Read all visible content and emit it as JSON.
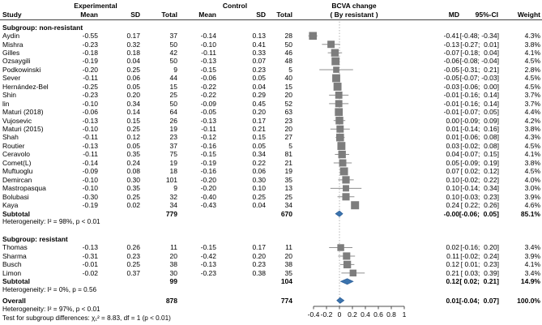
{
  "header": {
    "study": "Study",
    "experimental": "Experimental",
    "control": "Control",
    "bcva_line1": "BCVA change",
    "bcva_line2": "( By resistant )",
    "mean": "Mean",
    "sd": "SD",
    "total": "Total",
    "md": "MD",
    "ci": "95%-CI",
    "weight": "Weight"
  },
  "axis": {
    "ticks": [
      "-0.4",
      "-0.2",
      "0",
      "0.2",
      "0.4",
      "0.6",
      "0.8",
      "1"
    ],
    "tick_values": [
      -0.4,
      -0.2,
      0,
      0.2,
      0.4,
      0.6,
      0.8,
      1
    ],
    "min": -0.4,
    "max": 1
  },
  "colors": {
    "square": "#7d7d7d",
    "ci_line": "#8f8f8f",
    "diamond": "#3b73ad",
    "diamond_stroke": "#2f619a",
    "zero_line": "#b3b3b3",
    "axis": "#4d4d4d"
  },
  "subgroups": [
    {
      "label": "Subgroup: non-resistant",
      "studies": [
        {
          "study": "Aydin",
          "mean": "-0.55",
          "sd": "0.17",
          "total": "37",
          "c_mean": "-0.14",
          "c_sd": "0.13",
          "c_total": "28",
          "md": "-0.41",
          "ci": "[-0.48; -0.34]",
          "weight": "4.3%"
        },
        {
          "study": "Mishra",
          "mean": "-0.23",
          "sd": "0.32",
          "total": "50",
          "c_mean": "-0.10",
          "c_sd": "0.41",
          "c_total": "50",
          "md": "-0.13",
          "ci": "[-0.27;  0.01]",
          "weight": "3.8%"
        },
        {
          "study": "Gilles",
          "mean": "-0.18",
          "sd": "0.18",
          "total": "42",
          "c_mean": "-0.11",
          "c_sd": "0.33",
          "c_total": "46",
          "md": "-0.07",
          "ci": "[-0.18;  0.04]",
          "weight": "4.1%"
        },
        {
          "study": "Ozsaygili",
          "mean": "-0.19",
          "sd": "0.04",
          "total": "50",
          "c_mean": "-0.13",
          "c_sd": "0.07",
          "c_total": "48",
          "md": "-0.06",
          "ci": "[-0.08; -0.04]",
          "weight": "4.5%"
        },
        {
          "study": "Podkowinski",
          "mean": "-0.20",
          "sd": "0.25",
          "total": "9",
          "c_mean": "-0.15",
          "c_sd": "0.23",
          "c_total": "5",
          "md": "-0.05",
          "ci": "[-0.31;  0.21]",
          "weight": "2.8%"
        },
        {
          "study": "Sever",
          "mean": "-0.11",
          "sd": "0.06",
          "total": "44",
          "c_mean": "-0.06",
          "c_sd": "0.05",
          "c_total": "40",
          "md": "-0.05",
          "ci": "[-0.07; -0.03]",
          "weight": "4.5%"
        },
        {
          "study": "Hernández-Bel",
          "mean": "-0.25",
          "sd": "0.05",
          "total": "15",
          "c_mean": "-0.22",
          "c_sd": "0.04",
          "c_total": "15",
          "md": "-0.03",
          "ci": "[-0.06;  0.00]",
          "weight": "4.5%"
        },
        {
          "study": "Shin",
          "mean": "-0.23",
          "sd": "0.20",
          "total": "25",
          "c_mean": "-0.22",
          "c_sd": "0.29",
          "c_total": "20",
          "md": "-0.01",
          "ci": "[-0.16;  0.14]",
          "weight": "3.7%"
        },
        {
          "study": "lin",
          "mean": "-0.10",
          "sd": "0.34",
          "total": "50",
          "c_mean": "-0.09",
          "c_sd": "0.45",
          "c_total": "52",
          "md": "-0.01",
          "ci": "[-0.16;  0.14]",
          "weight": "3.7%"
        },
        {
          "study": "Maturi (2018)",
          "mean": "-0.06",
          "sd": "0.14",
          "total": "64",
          "c_mean": "-0.05",
          "c_sd": "0.20",
          "c_total": "63",
          "md": "-0.01",
          "ci": "[-0.07;  0.05]",
          "weight": "4.4%"
        },
        {
          "study": "Vujosevic",
          "mean": "-0.13",
          "sd": "0.15",
          "total": "26",
          "c_mean": "-0.13",
          "c_sd": "0.17",
          "c_total": "23",
          "md": "0.00",
          "ci": "[-0.09;  0.09]",
          "weight": "4.2%"
        },
        {
          "study": "Maturi (2015)",
          "mean": "-0.10",
          "sd": "0.25",
          "total": "19",
          "c_mean": "-0.11",
          "c_sd": "0.21",
          "c_total": "20",
          "md": "0.01",
          "ci": "[-0.14;  0.16]",
          "weight": "3.8%"
        },
        {
          "study": "Shah",
          "mean": "-0.11",
          "sd": "0.12",
          "total": "23",
          "c_mean": "-0.12",
          "c_sd": "0.15",
          "c_total": "27",
          "md": "0.01",
          "ci": "[-0.06;  0.08]",
          "weight": "4.3%"
        },
        {
          "study": "Routier",
          "mean": "-0.13",
          "sd": "0.05",
          "total": "37",
          "c_mean": "-0.16",
          "c_sd": "0.05",
          "c_total": "5",
          "md": "0.03",
          "ci": "[-0.02;  0.08]",
          "weight": "4.5%"
        },
        {
          "study": "Ceravolo",
          "mean": "-0.11",
          "sd": "0.35",
          "total": "75",
          "c_mean": "-0.15",
          "c_sd": "0.34",
          "c_total": "81",
          "md": "0.04",
          "ci": "[-0.07;  0.15]",
          "weight": "4.1%"
        },
        {
          "study": "Comet(L)",
          "mean": "-0.14",
          "sd": "0.24",
          "total": "19",
          "c_mean": "-0.19",
          "c_sd": "0.22",
          "c_total": "21",
          "md": "0.05",
          "ci": "[-0.09;  0.19]",
          "weight": "3.8%"
        },
        {
          "study": "Muftuoglu",
          "mean": "-0.09",
          "sd": "0.08",
          "total": "18",
          "c_mean": "-0.16",
          "c_sd": "0.06",
          "c_total": "19",
          "md": "0.07",
          "ci": "[ 0.02;  0.12]",
          "weight": "4.5%"
        },
        {
          "study": "Demircan",
          "mean": "-0.10",
          "sd": "0.30",
          "total": "101",
          "c_mean": "-0.20",
          "c_sd": "0.30",
          "c_total": "35",
          "md": "0.10",
          "ci": "[-0.02;  0.22]",
          "weight": "4.0%"
        },
        {
          "study": "Mastropasqua",
          "mean": "-0.10",
          "sd": "0.35",
          "total": "9",
          "c_mean": "-0.20",
          "c_sd": "0.10",
          "c_total": "13",
          "md": "0.10",
          "ci": "[-0.14;  0.34]",
          "weight": "3.0%"
        },
        {
          "study": "Bolubasi",
          "mean": "-0.30",
          "sd": "0.25",
          "total": "32",
          "c_mean": "-0.40",
          "c_sd": "0.25",
          "c_total": "25",
          "md": "0.10",
          "ci": "[-0.03;  0.23]",
          "weight": "3.9%"
        },
        {
          "study": "Kaya",
          "mean": "-0.19",
          "sd": "0.02",
          "total": "34",
          "c_mean": "-0.43",
          "c_sd": "0.04",
          "c_total": "34",
          "md": "0.24",
          "ci": "[ 0.22;  0.26]",
          "weight": "4.6%"
        }
      ],
      "subtotal": {
        "study": "Subtotal",
        "total": "779",
        "c_total": "670",
        "md": "-0.00",
        "ci": "[-0.06;  0.05]",
        "weight": "85.1%"
      },
      "heterogeneity": "Heterogeneity: I² = 98%, p < 0.01"
    },
    {
      "label": "Subgroup: resistant",
      "studies": [
        {
          "study": "Thomas",
          "mean": "-0.13",
          "sd": "0.26",
          "total": "11",
          "c_mean": "-0.15",
          "c_sd": "0.17",
          "c_total": "11",
          "md": "0.02",
          "ci": "[-0.16;  0.20]",
          "weight": "3.4%"
        },
        {
          "study": "Sharma",
          "mean": "-0.31",
          "sd": "0.23",
          "total": "20",
          "c_mean": "-0.42",
          "c_sd": "0.20",
          "c_total": "20",
          "md": "0.11",
          "ci": "[-0.02;  0.24]",
          "weight": "3.9%"
        },
        {
          "study": "Busch",
          "mean": "-0.01",
          "sd": "0.25",
          "total": "38",
          "c_mean": "-0.13",
          "c_sd": "0.23",
          "c_total": "38",
          "md": "0.12",
          "ci": "[ 0.01;  0.23]",
          "weight": "4.1%"
        },
        {
          "study": "Limon",
          "mean": "-0.02",
          "sd": "0.37",
          "total": "30",
          "c_mean": "-0.23",
          "c_sd": "0.38",
          "c_total": "35",
          "md": "0.21",
          "ci": "[ 0.03;  0.39]",
          "weight": "3.4%"
        }
      ],
      "subtotal": {
        "study": "Subtotal",
        "total": "99",
        "c_total": "104",
        "md": "0.12",
        "ci": "[ 0.02;  0.21]",
        "weight": "14.9%"
      },
      "heterogeneity": "Heterogeneity: I² = 0%, p = 0.56"
    }
  ],
  "overall": {
    "row": {
      "study": "Overall",
      "total": "878",
      "c_total": "774",
      "md": "0.01",
      "ci": "[-0.04;  0.07]",
      "weight": "100.0%"
    },
    "heterogeneity": "Heterogeneity: I² = 97%, p < 0.01",
    "test": "Test for subgroup differences: χ₁² = 8.83, df = 1 (p < 0.01)"
  },
  "chart_data": {
    "type": "scatter",
    "title": "BCVA change ( By resistant )",
    "xlabel": "MD",
    "xlim": [
      -0.4,
      1
    ],
    "x_ticks": [
      -0.4,
      -0.2,
      0,
      0.2,
      0.4,
      0.6,
      0.8,
      1
    ],
    "legend_position": "none",
    "grid": false,
    "series": [
      {
        "name": "Subgroup: non-resistant",
        "points": [
          {
            "study": "Aydin",
            "md": -0.41,
            "ci": [
              -0.48,
              -0.34
            ],
            "weight_pct": 4.3
          },
          {
            "study": "Mishra",
            "md": -0.13,
            "ci": [
              -0.27,
              0.01
            ],
            "weight_pct": 3.8
          },
          {
            "study": "Gilles",
            "md": -0.07,
            "ci": [
              -0.18,
              0.04
            ],
            "weight_pct": 4.1
          },
          {
            "study": "Ozsaygili",
            "md": -0.06,
            "ci": [
              -0.08,
              -0.04
            ],
            "weight_pct": 4.5
          },
          {
            "study": "Podkowinski",
            "md": -0.05,
            "ci": [
              -0.31,
              0.21
            ],
            "weight_pct": 2.8
          },
          {
            "study": "Sever",
            "md": -0.05,
            "ci": [
              -0.07,
              -0.03
            ],
            "weight_pct": 4.5
          },
          {
            "study": "Hernández-Bel",
            "md": -0.03,
            "ci": [
              -0.06,
              0.0
            ],
            "weight_pct": 4.5
          },
          {
            "study": "Shin",
            "md": -0.01,
            "ci": [
              -0.16,
              0.14
            ],
            "weight_pct": 3.7
          },
          {
            "study": "lin",
            "md": -0.01,
            "ci": [
              -0.16,
              0.14
            ],
            "weight_pct": 3.7
          },
          {
            "study": "Maturi (2018)",
            "md": -0.01,
            "ci": [
              -0.07,
              0.05
            ],
            "weight_pct": 4.4
          },
          {
            "study": "Vujosevic",
            "md": 0.0,
            "ci": [
              -0.09,
              0.09
            ],
            "weight_pct": 4.2
          },
          {
            "study": "Maturi (2015)",
            "md": 0.01,
            "ci": [
              -0.14,
              0.16
            ],
            "weight_pct": 3.8
          },
          {
            "study": "Shah",
            "md": 0.01,
            "ci": [
              -0.06,
              0.08
            ],
            "weight_pct": 4.3
          },
          {
            "study": "Routier",
            "md": 0.03,
            "ci": [
              -0.02,
              0.08
            ],
            "weight_pct": 4.5
          },
          {
            "study": "Ceravolo",
            "md": 0.04,
            "ci": [
              -0.07,
              0.15
            ],
            "weight_pct": 4.1
          },
          {
            "study": "Comet(L)",
            "md": 0.05,
            "ci": [
              -0.09,
              0.19
            ],
            "weight_pct": 3.8
          },
          {
            "study": "Muftuoglu",
            "md": 0.07,
            "ci": [
              0.02,
              0.12
            ],
            "weight_pct": 4.5
          },
          {
            "study": "Demircan",
            "md": 0.1,
            "ci": [
              -0.02,
              0.22
            ],
            "weight_pct": 4.0
          },
          {
            "study": "Mastropasqua",
            "md": 0.1,
            "ci": [
              -0.14,
              0.34
            ],
            "weight_pct": 3.0
          },
          {
            "study": "Bolubasi",
            "md": 0.1,
            "ci": [
              -0.03,
              0.23
            ],
            "weight_pct": 3.9
          },
          {
            "study": "Kaya",
            "md": 0.24,
            "ci": [
              0.22,
              0.26
            ],
            "weight_pct": 4.6
          }
        ]
      },
      {
        "name": "Subgroup: resistant",
        "points": [
          {
            "study": "Thomas",
            "md": 0.02,
            "ci": [
              -0.16,
              0.2
            ],
            "weight_pct": 3.4
          },
          {
            "study": "Sharma",
            "md": 0.11,
            "ci": [
              -0.02,
              0.24
            ],
            "weight_pct": 3.9
          },
          {
            "study": "Busch",
            "md": 0.12,
            "ci": [
              0.01,
              0.23
            ],
            "weight_pct": 4.1
          },
          {
            "study": "Limon",
            "md": 0.21,
            "ci": [
              0.03,
              0.39
            ],
            "weight_pct": 3.4
          }
        ]
      },
      {
        "name": "Summary diamonds",
        "points": [
          {
            "study": "Subtotal non-resistant",
            "md": -0.0,
            "ci": [
              -0.06,
              0.05
            ],
            "weight_pct": 85.1
          },
          {
            "study": "Subtotal resistant",
            "md": 0.12,
            "ci": [
              0.02,
              0.21
            ],
            "weight_pct": 14.9
          },
          {
            "study": "Overall",
            "md": 0.01,
            "ci": [
              -0.04,
              0.07
            ],
            "weight_pct": 100.0
          }
        ]
      }
    ]
  }
}
